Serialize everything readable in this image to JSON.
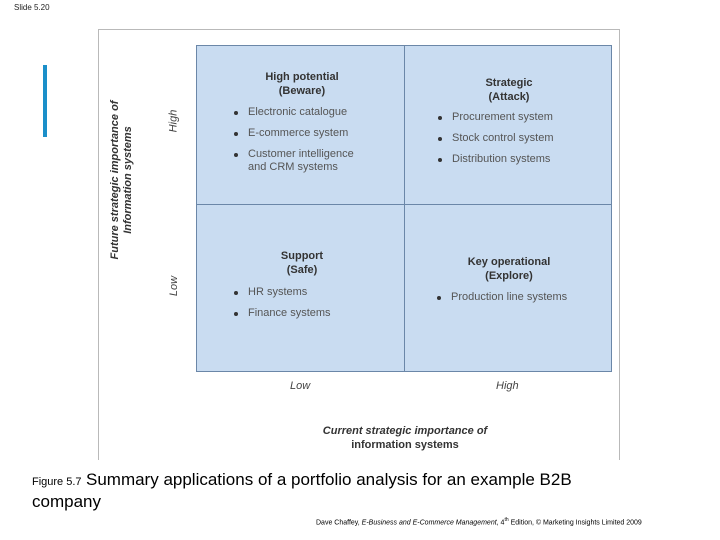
{
  "slide_label": "Slide 5.20",
  "matrix": {
    "y_axis_title": "Future strategic importance of\nInformation systems",
    "y_high": "High",
    "y_low": "Low",
    "x_axis_title_line1": "Current strategic importance of",
    "x_axis_title_line2": "information systems",
    "x_low": "Low",
    "x_high": "High",
    "quadrants": {
      "top_left": {
        "title_line1": "High potential",
        "title_line2": "(Beware)",
        "items": [
          "Electronic catalogue",
          "E-commerce system",
          "Customer intelligence\nand CRM systems"
        ]
      },
      "top_right": {
        "title_line1": "Strategic",
        "title_line2": "(Attack)",
        "items": [
          "Procurement system",
          "Stock control system",
          "Distribution systems"
        ]
      },
      "bottom_left": {
        "title_line1": "Support",
        "title_line2": "(Safe)",
        "items": [
          "HR systems",
          "Finance systems"
        ]
      },
      "bottom_right": {
        "title_line1": "Key operational",
        "title_line2": "(Explore)",
        "items": [
          "Production line systems"
        ]
      }
    }
  },
  "caption": {
    "figure_label": "Figure 5.7",
    "text_line1": "Summary applications of a portfolio analysis for an example B2B",
    "text_line2": "company"
  },
  "credit": {
    "author": "Dave Chaffey, ",
    "title": "E-Business and E-Commerce Management",
    "edition_pre": ", 4",
    "edition_sup": "th",
    "rest": " Edition, © Marketing Insights Limited 2009"
  },
  "colors": {
    "quadrant_fill": "#c9dcf1",
    "grid_line": "#6b87a8",
    "accent_bar": "#1b8fc9"
  }
}
